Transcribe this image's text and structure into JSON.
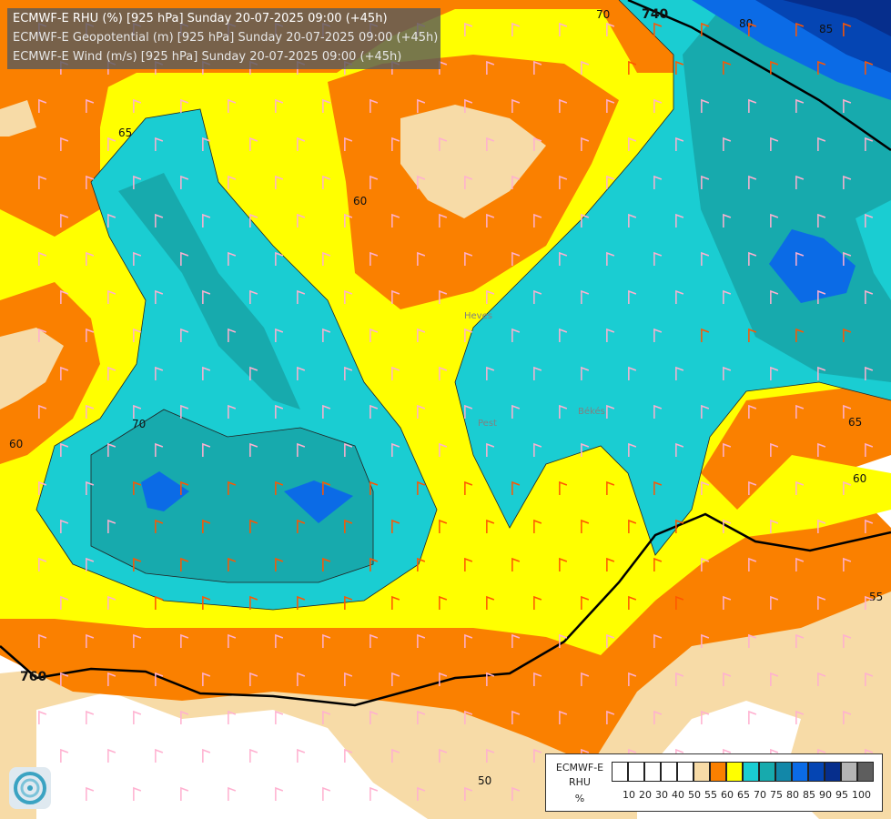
{
  "titles": {
    "line1": "ECMWF-E RHU (%) [925 hPa] Sunday 20-07-2025 09:00 (+45h)",
    "line2": "ECMWF-E Geopotential (m) [925 hPa] Sunday 20-07-2025 09:00 (+45h)",
    "line3": "ECMWF-E Wind (m/s) [925 hPa] Sunday 20-07-2025 09:00 (+45h)"
  },
  "contour_labels": {
    "rhu": [
      "70",
      "80",
      "85",
      "65",
      "60",
      "60",
      "70",
      "65",
      "60",
      "55",
      "50"
    ],
    "geopotential": [
      "740",
      "760"
    ]
  },
  "place_labels": [
    "Pest",
    "Heves",
    "Békés"
  ],
  "legend": {
    "line1": "ECMWF-E",
    "line2": "RHU",
    "line3": "%",
    "colors": [
      "#ffffff",
      "#ffffff",
      "#ffffff",
      "#ffffff",
      "#ffffff",
      "#f7dba7",
      "#fa8000",
      "#ffff00",
      "#1acdd2",
      "#17aaad",
      "#1287a8",
      "#0b6be6",
      "#0545b3",
      "#062e8c",
      "#b5b5b5",
      "#5e5e5e"
    ],
    "ticks": [
      "10",
      "20",
      "30",
      "40",
      "50",
      "55",
      "60",
      "65",
      "70",
      "75",
      "80",
      "85",
      "90",
      "95",
      "100"
    ]
  },
  "colors": {
    "c50": "#f7dba7",
    "c55": "#fa8000",
    "c60": "#ffff00",
    "c65": "#1acdd2",
    "c70": "#17aaad",
    "c75": "#0b6be6",
    "c80": "#0545b3",
    "c85": "#062e8c",
    "barb_light": "#ffb0d0",
    "barb_strong": "#ff5500"
  },
  "icons": {
    "logo": "ecmwf-swirl-icon"
  }
}
